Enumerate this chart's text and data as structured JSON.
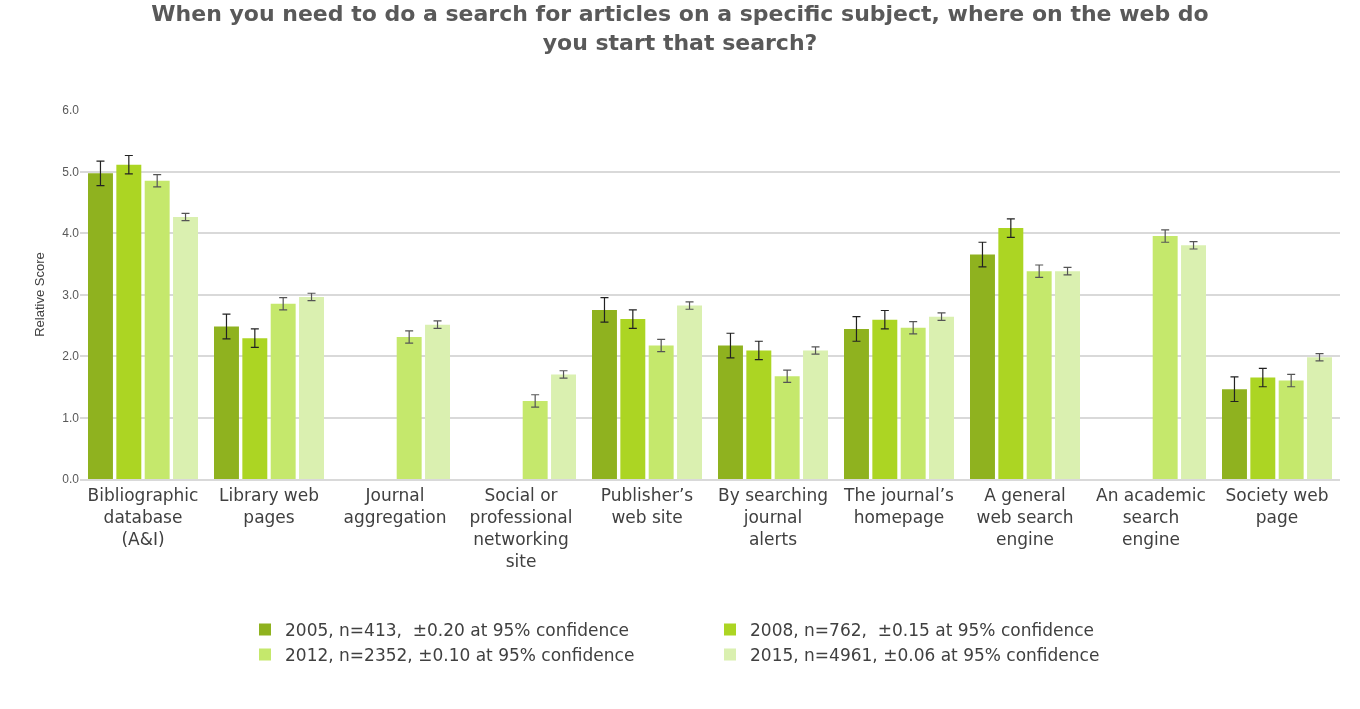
{
  "chart_data": {
    "type": "bar",
    "title": "When you need to do a search for articles on a specific subject, where on the web do you start that search?",
    "ylabel": "Relative Score",
    "categories": [
      "Bibliographic\ndatabase\n(A&I)",
      "Library web\npages",
      "Journal\naggregation",
      "Social or\nprofessional\nnetworking\nsite",
      "Publisher’s\nweb site",
      "By searching\njournal\nalerts",
      "The journal’s\nhomepage",
      "A general\nweb search\nengine",
      "An academic\nsearch\nengine",
      "Society web\npage"
    ],
    "series": [
      {
        "name": "2005, n=413,  ±0.20 at 95% confidence",
        "color": "#8fb21f",
        "values": [
          4.97,
          2.48,
          null,
          null,
          2.75,
          2.17,
          2.44,
          3.65,
          null,
          1.46
        ],
        "errors": [
          0.2,
          0.2,
          null,
          null,
          0.2,
          0.2,
          0.2,
          0.2,
          null,
          0.2
        ]
      },
      {
        "name": "2008, n=762,  ±0.15 at 95% confidence",
        "color": "#acd523",
        "values": [
          5.11,
          2.29,
          null,
          null,
          2.6,
          2.09,
          2.59,
          4.08,
          null,
          1.65
        ],
        "errors": [
          0.15,
          0.15,
          null,
          null,
          0.15,
          0.15,
          0.15,
          0.15,
          null,
          0.15
        ]
      },
      {
        "name": "2012, n=2352, ±0.10 at 95% confidence",
        "color": "#c5e86c",
        "values": [
          4.85,
          2.85,
          2.31,
          1.27,
          2.17,
          1.67,
          2.46,
          3.38,
          3.95,
          1.6
        ],
        "errors": [
          0.1,
          0.1,
          0.1,
          0.1,
          0.1,
          0.1,
          0.1,
          0.1,
          0.1,
          0.1
        ]
      },
      {
        "name": "2015, n=4961, ±0.06 at 95% confidence",
        "color": "#daf0b0",
        "values": [
          4.26,
          2.96,
          2.51,
          1.7,
          2.82,
          2.09,
          2.64,
          3.38,
          3.8,
          1.98
        ],
        "errors": [
          0.06,
          0.06,
          0.06,
          0.06,
          0.06,
          0.06,
          0.06,
          0.06,
          0.06,
          0.06
        ]
      }
    ],
    "ylim": [
      0,
      6
    ],
    "yticks": [
      {
        "value": 0,
        "label": "0.0"
      },
      {
        "value": 1,
        "label": "1.0"
      },
      {
        "value": 2,
        "label": "2.0"
      },
      {
        "value": 3,
        "label": "3.0"
      },
      {
        "value": 4,
        "label": "4.0"
      },
      {
        "value": 5,
        "label": "5.0"
      },
      {
        "value": 6,
        "label": "6.0"
      }
    ],
    "grid": "y",
    "legend": "bottom"
  }
}
